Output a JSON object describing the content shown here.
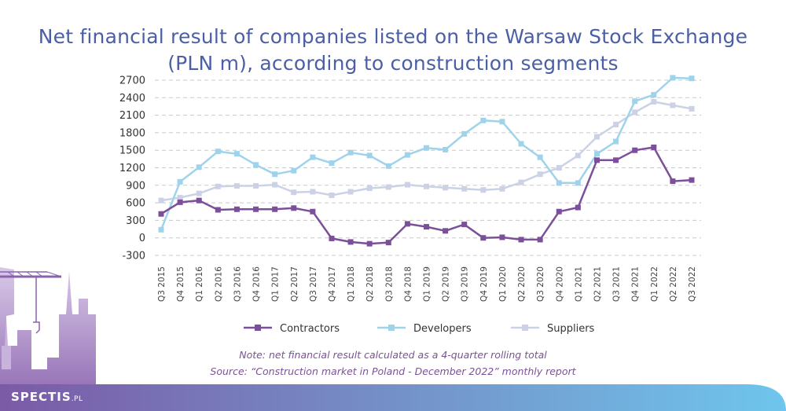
{
  "title_line1": "Net financial result of companies listed on the Warsaw Stock Exchange",
  "title_line2": "(PLN m), according to construction segments",
  "note": "Note: net financial result calculated as a 4-quarter rolling total",
  "source": "Source: “Construction market in Poland - December 2022” monthly report",
  "logo": {
    "main": "SPECTIS",
    "suffix": ".PL"
  },
  "colors": {
    "title": "#4a5fa5",
    "note": "#7a5296",
    "contractors": "#7b4f99",
    "developers": "#9fd3ec",
    "suppliers": "#ccd2e6",
    "grid": "#c8c8c8",
    "footer_start": "#7b5aa6",
    "footer_end": "#6ec6ec"
  },
  "chart_data": {
    "type": "line",
    "yticks": [
      2700,
      2400,
      2100,
      1800,
      1500,
      1200,
      900,
      600,
      300,
      0,
      -300
    ],
    "ylim": [
      -300,
      2700
    ],
    "grid": "horizontal dashed",
    "legend_position": "bottom",
    "categories": [
      "Q3 2015",
      "Q4 2015",
      "Q1 2016",
      "Q2 2016",
      "Q3 2016",
      "Q4 2016",
      "Q1 2017",
      "Q2 2017",
      "Q3 2017",
      "Q4 2017",
      "Q1 2018",
      "Q2 2018",
      "Q3 2018",
      "Q4 2018",
      "Q1 2019",
      "Q2 2019",
      "Q3 2019",
      "Q4 2019",
      "Q1 2020",
      "Q2 2020",
      "Q3 2020",
      "Q4 2020",
      "Q1 2021",
      "Q2 2021",
      "Q3 2021",
      "Q4 2021",
      "Q1 2022",
      "Q2 2022",
      "Q3 2022"
    ],
    "series": [
      {
        "name": "Contractors",
        "color": "#7b4f99",
        "values": [
          410,
          610,
          640,
          480,
          490,
          490,
          490,
          510,
          450,
          -10,
          -70,
          -100,
          -80,
          240,
          190,
          120,
          230,
          0,
          10,
          -30,
          -30,
          450,
          520,
          1330,
          1330,
          1500,
          1550,
          970,
          990
        ]
      },
      {
        "name": "Developers",
        "color": "#9fd3ec",
        "values": [
          140,
          960,
          1210,
          1480,
          1440,
          1250,
          1090,
          1150,
          1380,
          1280,
          1460,
          1410,
          1230,
          1420,
          1540,
          1510,
          1780,
          2010,
          1990,
          1610,
          1380,
          940,
          940,
          1440,
          1650,
          2340,
          2450,
          2740,
          2730
        ]
      },
      {
        "name": "Suppliers",
        "color": "#ccd2e6",
        "values": [
          640,
          690,
          760,
          880,
          890,
          890,
          910,
          780,
          790,
          730,
          790,
          850,
          870,
          910,
          880,
          860,
          840,
          820,
          840,
          950,
          1090,
          1200,
          1410,
          1730,
          1940,
          2150,
          2330,
          2270,
          2210
        ]
      }
    ]
  }
}
